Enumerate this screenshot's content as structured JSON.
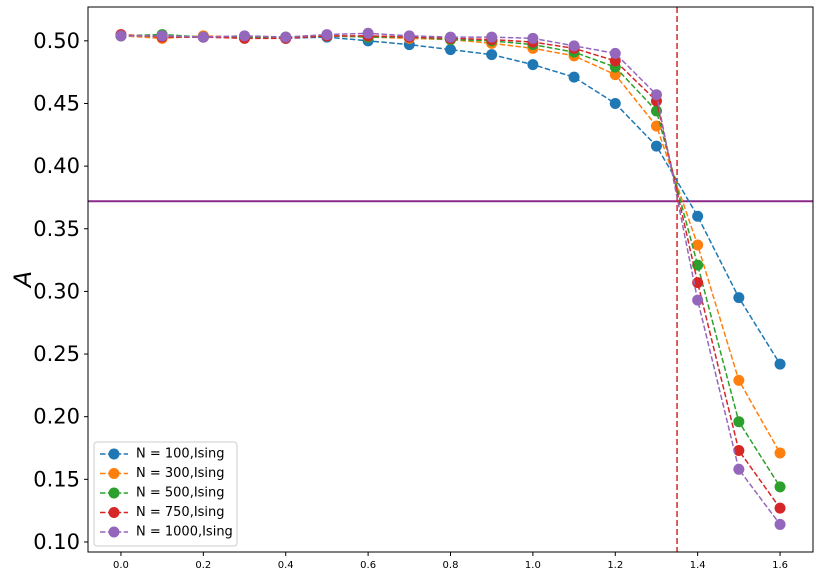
{
  "chart_data": {
    "type": "line",
    "title": "",
    "xlabel": "",
    "ylabel": "A",
    "xlim": [
      -0.08,
      1.68
    ],
    "ylim": [
      0.092,
      0.527
    ],
    "xticks": [
      "0.0",
      "0.2",
      "0.4",
      "0.6",
      "0.8",
      "1.0",
      "1.2",
      "1.4",
      "1.6"
    ],
    "yticks": [
      "0.10",
      "0.15",
      "0.20",
      "0.25",
      "0.30",
      "0.35",
      "0.40",
      "0.45",
      "0.50"
    ],
    "grid": false,
    "legend_position": "lower-left",
    "hline": {
      "y": 0.372,
      "color": "#8b2a8b"
    },
    "vline": {
      "x": 1.35,
      "color": "#d62728"
    },
    "x": [
      0.0,
      0.1,
      0.2,
      0.3,
      0.4,
      0.5,
      0.6,
      0.7,
      0.8,
      0.9,
      1.0,
      1.1,
      1.2,
      1.3,
      1.4,
      1.5,
      1.6
    ],
    "series": [
      {
        "name": "N = 100,Ising",
        "color": "#1f77b4",
        "values": [
          0.504,
          0.503,
          0.503,
          0.503,
          0.502,
          0.503,
          0.5,
          0.497,
          0.493,
          0.489,
          0.481,
          0.471,
          0.45,
          0.416,
          0.36,
          0.295,
          0.242
        ]
      },
      {
        "name": "N = 300,Ising",
        "color": "#ff7f0e",
        "values": [
          0.504,
          0.502,
          0.504,
          0.503,
          0.503,
          0.504,
          0.503,
          0.502,
          0.501,
          0.498,
          0.494,
          0.488,
          0.473,
          0.432,
          0.337,
          0.229,
          0.171
        ]
      },
      {
        "name": "N = 500,Ising",
        "color": "#2ca02c",
        "values": [
          0.504,
          0.505,
          0.503,
          0.503,
          0.503,
          0.504,
          0.503,
          0.503,
          0.501,
          0.5,
          0.497,
          0.491,
          0.479,
          0.444,
          0.321,
          0.196,
          0.144
        ]
      },
      {
        "name": "N = 750,Ising",
        "color": "#d62728",
        "values": [
          0.505,
          0.503,
          0.503,
          0.502,
          0.502,
          0.504,
          0.504,
          0.503,
          0.502,
          0.501,
          0.499,
          0.494,
          0.484,
          0.452,
          0.307,
          0.173,
          0.127
        ]
      },
      {
        "name": "N = 1000,Ising",
        "color": "#9467bd",
        "values": [
          0.504,
          0.504,
          0.503,
          0.504,
          0.503,
          0.505,
          0.506,
          0.504,
          0.503,
          0.503,
          0.502,
          0.496,
          0.49,
          0.457,
          0.293,
          0.158,
          0.114
        ]
      }
    ]
  }
}
